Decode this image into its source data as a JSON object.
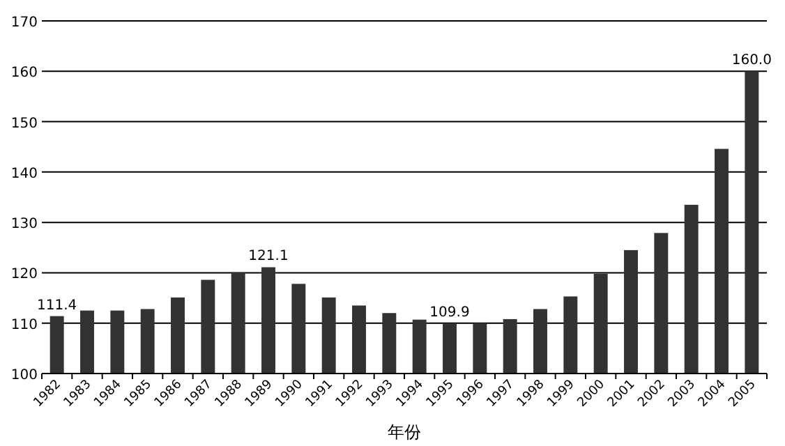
{
  "chart_data": {
    "type": "bar",
    "xlabel": "年份",
    "categories": [
      "1982",
      "1983",
      "1984",
      "1985",
      "1986",
      "1987",
      "1988",
      "1989",
      "1990",
      "1991",
      "1992",
      "1993",
      "1994",
      "1995",
      "1996",
      "1997",
      "1998",
      "1999",
      "2000",
      "2001",
      "2002",
      "2003",
      "2004",
      "2005"
    ],
    "values": [
      111.4,
      112.5,
      112.5,
      112.8,
      115.1,
      118.6,
      120.1,
      121.1,
      117.8,
      115.1,
      113.5,
      112.0,
      110.7,
      109.9,
      110.0,
      110.8,
      112.8,
      115.3,
      119.8,
      124.5,
      127.9,
      133.5,
      144.6,
      160.0
    ],
    "value_labels": [
      "111.4",
      null,
      null,
      null,
      null,
      null,
      null,
      "121.1",
      null,
      null,
      null,
      null,
      null,
      "109.9",
      null,
      null,
      null,
      null,
      null,
      null,
      null,
      null,
      null,
      "160.0"
    ],
    "color": "#333333",
    "ylim": [
      100,
      170
    ],
    "yticks": [
      100,
      110,
      120,
      130,
      140,
      150,
      160,
      170
    ],
    "grid": "y"
  }
}
